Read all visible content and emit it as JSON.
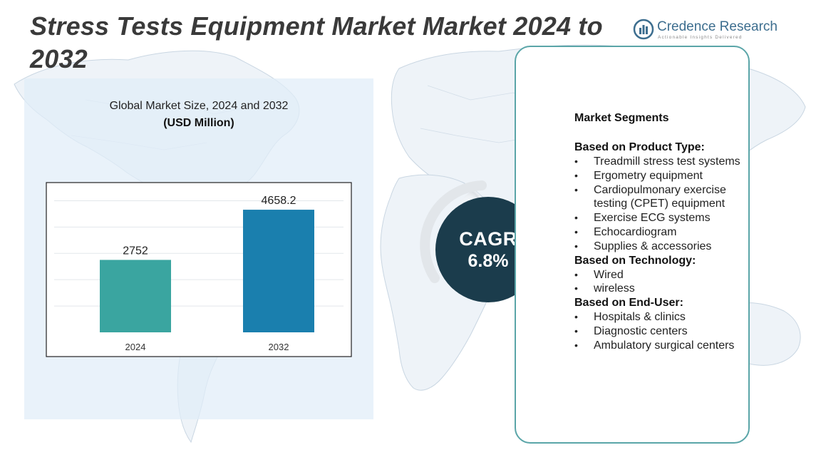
{
  "title": "Stress Tests Equipment Market Market 2024 to 2032",
  "logo": {
    "name_part1": "Credence",
    "name_part2": "Research",
    "tagline": "Actionable Insights Delivered",
    "color": "#3d6e8f"
  },
  "chart_data": {
    "type": "bar",
    "title": "Global Market Size, 2024 and 2032",
    "subtitle": "(USD Million)",
    "categories": [
      "2024",
      "2032"
    ],
    "values": [
      2752,
      4658.2
    ],
    "value_labels": [
      "2752",
      "4658.2"
    ],
    "colors": [
      "#3aa5a0",
      "#1a7fae"
    ],
    "ylim": [
      0,
      5500
    ],
    "grid": true,
    "legend": "none"
  },
  "cagr": {
    "label": "CAGR",
    "value": "6.8%",
    "color": "#1b3c4c"
  },
  "segments": {
    "heading": "Market Segments",
    "groups": [
      {
        "title": "Based on Product Type:",
        "items": [
          "Treadmill stress test systems",
          "Ergometry equipment",
          "Cardiopulmonary exercise testing (CPET) equipment",
          "Exercise ECG systems",
          "Echocardiogram",
          "Supplies & accessories"
        ]
      },
      {
        "title": "Based on Technology:",
        "items": [
          "Wired",
          "wireless"
        ]
      },
      {
        "title": "Based on End-User:",
        "items": [
          "Hospitals & clinics",
          "Diagnostic centers",
          "Ambulatory surgical centers"
        ]
      }
    ],
    "border_color": "#5aa5a8"
  }
}
